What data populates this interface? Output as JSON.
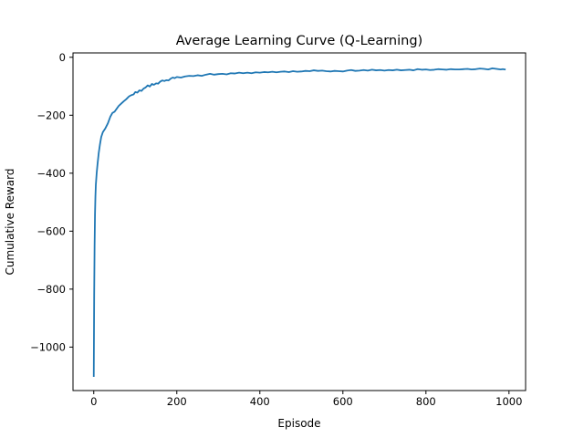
{
  "chart_data": {
    "type": "line",
    "title": "Average Learning Curve (Q-Learning)",
    "xlabel": "Episode",
    "ylabel": "Cumulative Reward",
    "xlim": [
      -50,
      1040
    ],
    "ylim": [
      -1150,
      15
    ],
    "xticks": [
      0,
      200,
      400,
      600,
      800,
      1000
    ],
    "yticks": [
      0,
      -200,
      -400,
      -600,
      -800,
      -1000
    ],
    "xtick_labels": [
      "0",
      "200",
      "400",
      "600",
      "800",
      "1000"
    ],
    "ytick_labels": [
      "0",
      "−200",
      "−400",
      "−600",
      "−800",
      "−1000"
    ],
    "grid": false,
    "series": [
      {
        "color": "#1f77b4",
        "points": [
          [
            0,
            -1100
          ],
          [
            1,
            -820
          ],
          [
            2,
            -650
          ],
          [
            3,
            -540
          ],
          [
            4,
            -480
          ],
          [
            5,
            -440
          ],
          [
            7,
            -400
          ],
          [
            9,
            -370
          ],
          [
            12,
            -330
          ],
          [
            15,
            -300
          ],
          [
            18,
            -275
          ],
          [
            22,
            -258
          ],
          [
            28,
            -245
          ],
          [
            34,
            -228
          ],
          [
            40,
            -205
          ],
          [
            45,
            -192
          ],
          [
            50,
            -188
          ],
          [
            55,
            -178
          ],
          [
            60,
            -168
          ],
          [
            66,
            -160
          ],
          [
            72,
            -152
          ],
          [
            78,
            -145
          ],
          [
            85,
            -135
          ],
          [
            90,
            -131
          ],
          [
            96,
            -128
          ],
          [
            100,
            -120
          ],
          [
            105,
            -122
          ],
          [
            110,
            -114
          ],
          [
            115,
            -116
          ],
          [
            120,
            -108
          ],
          [
            125,
            -104
          ],
          [
            130,
            -97
          ],
          [
            135,
            -101
          ],
          [
            140,
            -92
          ],
          [
            145,
            -95
          ],
          [
            150,
            -90
          ],
          [
            155,
            -91
          ],
          [
            160,
            -84
          ],
          [
            165,
            -80
          ],
          [
            170,
            -82
          ],
          [
            175,
            -79
          ],
          [
            180,
            -80
          ],
          [
            185,
            -74
          ],
          [
            190,
            -70
          ],
          [
            195,
            -72
          ],
          [
            200,
            -68
          ],
          [
            210,
            -70
          ],
          [
            220,
            -66
          ],
          [
            230,
            -64
          ],
          [
            240,
            -65
          ],
          [
            250,
            -62
          ],
          [
            260,
            -64
          ],
          [
            270,
            -60
          ],
          [
            280,
            -57
          ],
          [
            290,
            -60
          ],
          [
            300,
            -58
          ],
          [
            310,
            -57
          ],
          [
            320,
            -59
          ],
          [
            330,
            -55
          ],
          [
            340,
            -56
          ],
          [
            350,
            -53
          ],
          [
            360,
            -55
          ],
          [
            370,
            -53
          ],
          [
            380,
            -55
          ],
          [
            390,
            -52
          ],
          [
            400,
            -53
          ],
          [
            410,
            -51
          ],
          [
            420,
            -52
          ],
          [
            430,
            -50
          ],
          [
            440,
            -52
          ],
          [
            450,
            -50
          ],
          [
            460,
            -49
          ],
          [
            470,
            -51
          ],
          [
            480,
            -48
          ],
          [
            490,
            -50
          ],
          [
            500,
            -49
          ],
          [
            510,
            -47
          ],
          [
            520,
            -48
          ],
          [
            530,
            -45
          ],
          [
            540,
            -47
          ],
          [
            550,
            -46
          ],
          [
            560,
            -48
          ],
          [
            570,
            -49
          ],
          [
            580,
            -47
          ],
          [
            590,
            -48
          ],
          [
            600,
            -49
          ],
          [
            610,
            -46
          ],
          [
            620,
            -44
          ],
          [
            630,
            -47
          ],
          [
            640,
            -46
          ],
          [
            650,
            -44
          ],
          [
            660,
            -46
          ],
          [
            670,
            -43
          ],
          [
            680,
            -45
          ],
          [
            690,
            -44
          ],
          [
            700,
            -46
          ],
          [
            710,
            -44
          ],
          [
            720,
            -45
          ],
          [
            730,
            -43
          ],
          [
            740,
            -45
          ],
          [
            750,
            -44
          ],
          [
            760,
            -43
          ],
          [
            770,
            -45
          ],
          [
            780,
            -41
          ],
          [
            790,
            -43
          ],
          [
            800,
            -42
          ],
          [
            810,
            -44
          ],
          [
            820,
            -43
          ],
          [
            830,
            -41
          ],
          [
            840,
            -42
          ],
          [
            850,
            -43
          ],
          [
            860,
            -41
          ],
          [
            870,
            -42
          ],
          [
            880,
            -42
          ],
          [
            890,
            -41
          ],
          [
            900,
            -40
          ],
          [
            910,
            -42
          ],
          [
            920,
            -41
          ],
          [
            930,
            -39
          ],
          [
            940,
            -40
          ],
          [
            950,
            -42
          ],
          [
            960,
            -38
          ],
          [
            970,
            -40
          ],
          [
            980,
            -42
          ],
          [
            985,
            -41
          ],
          [
            990,
            -42
          ]
        ]
      }
    ]
  }
}
